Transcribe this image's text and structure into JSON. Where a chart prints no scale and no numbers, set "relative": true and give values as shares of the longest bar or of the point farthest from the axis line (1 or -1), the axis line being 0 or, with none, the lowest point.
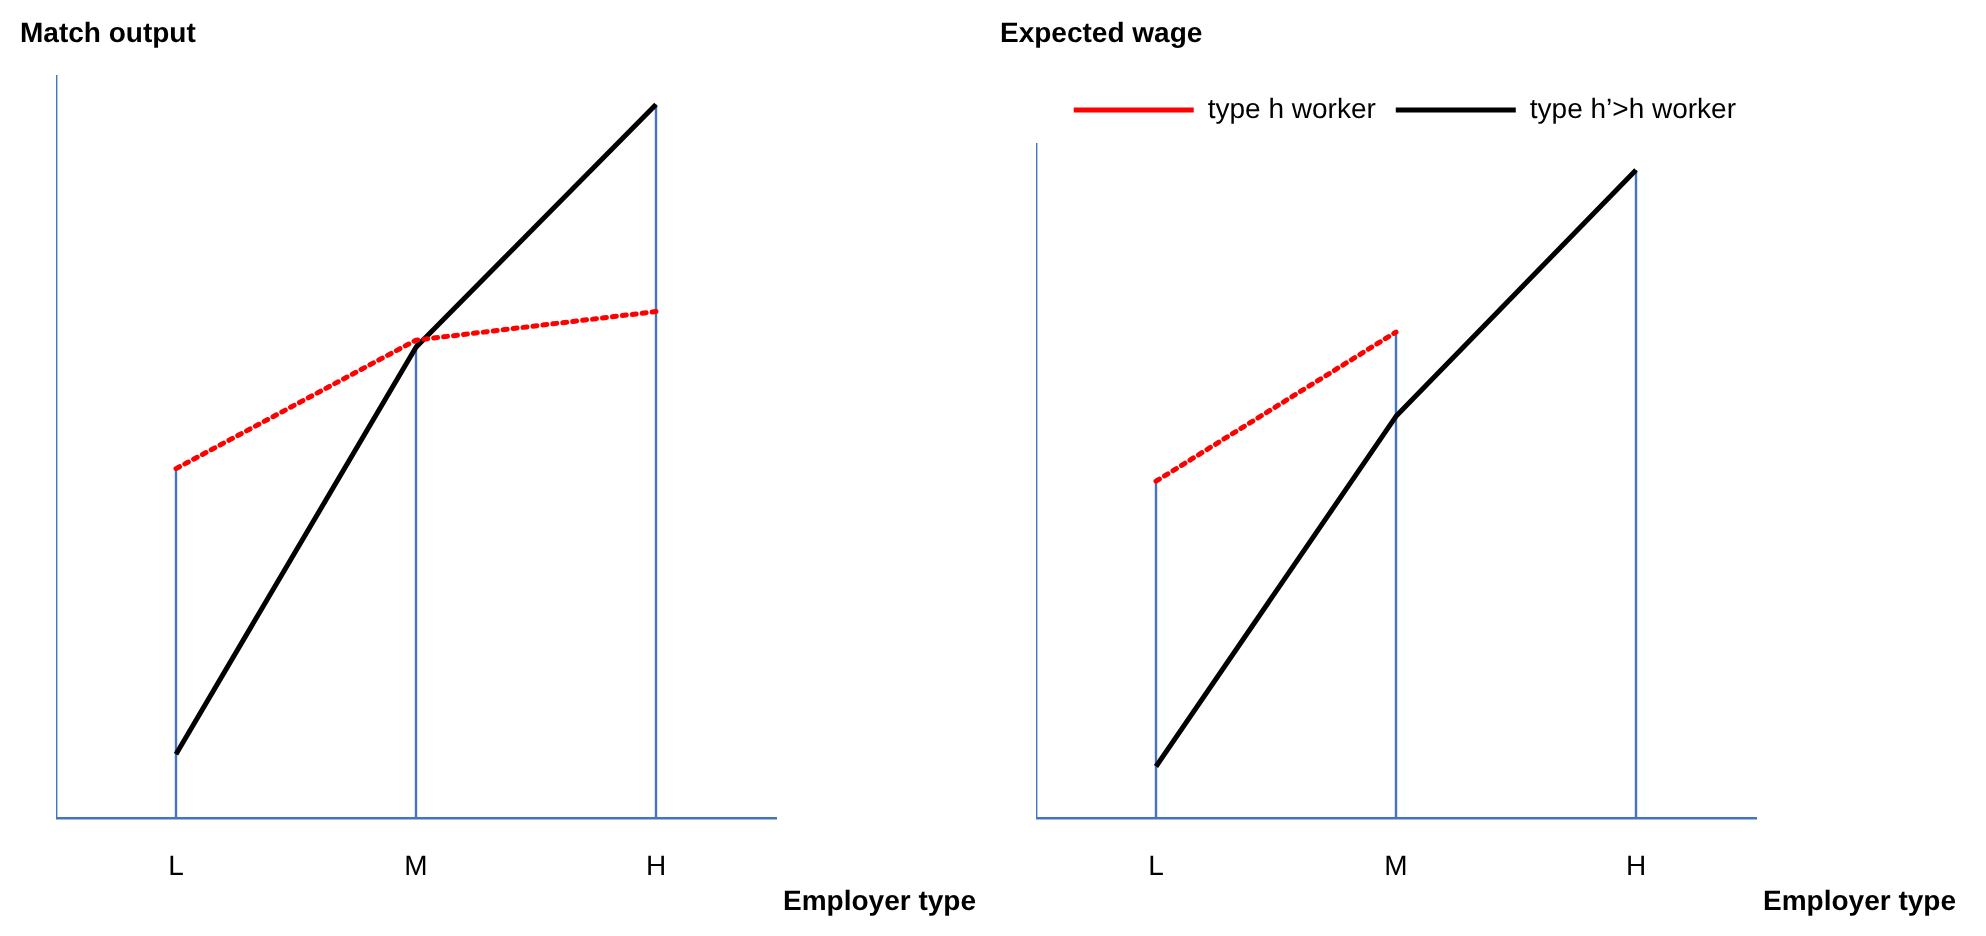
{
  "chart_data": [
    {
      "type": "line",
      "relative": true,
      "ylabel": "Match output",
      "xlabel": "Employer type",
      "categories": [
        "L",
        "M",
        "H"
      ],
      "legend": false,
      "marker": "none",
      "series": [
        {
          "color": "#ff0000",
          "line_style": "dotted",
          "values": [
            0.49,
            0.67,
            0.71
          ]
        },
        {
          "color": "#000000",
          "line_style": "solid",
          "values": [
            0.09,
            0.66,
            1
          ]
        }
      ],
      "ref_lines": [
        {
          "axis": "x",
          "value": "L",
          "color": "#4472c4"
        },
        {
          "axis": "x",
          "value": "M",
          "color": "#4472c4"
        },
        {
          "axis": "x",
          "value": "H",
          "color": "#4472c4"
        }
      ]
    },
    {
      "type": "line",
      "relative": true,
      "ylabel": "Expected wage",
      "xlabel": "Employer type",
      "categories": [
        "L",
        "M",
        "H"
      ],
      "legend": "top right",
      "marker": "none",
      "series": [
        {
          "name": "type h worker",
          "color": "#ff0000",
          "line_style": "dotted",
          "values": [
            0.52,
            0.75,
            null
          ]
        },
        {
          "name": "type h’>h worker",
          "color": "#000000",
          "line_style": "solid",
          "values": [
            0.08,
            0.62,
            1
          ]
        }
      ],
      "ref_lines": [
        {
          "axis": "x",
          "value": "L",
          "color": "#4472c4"
        },
        {
          "axis": "x",
          "value": "M",
          "color": "#4472c4"
        },
        {
          "axis": "x",
          "value": "H",
          "color": "#4472c4"
        }
      ]
    }
  ]
}
